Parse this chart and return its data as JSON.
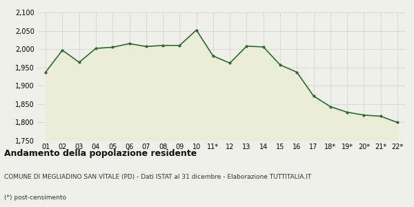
{
  "x_labels": [
    "01",
    "02",
    "03",
    "04",
    "05",
    "06",
    "07",
    "08",
    "09",
    "10",
    "11*",
    "12",
    "13",
    "14",
    "15",
    "16",
    "17",
    "18*",
    "19*",
    "20*",
    "21*",
    "22*"
  ],
  "y_values": [
    1937,
    1997,
    1964,
    2002,
    2005,
    2015,
    2007,
    2010,
    2010,
    2052,
    1981,
    1962,
    2008,
    2006,
    1957,
    1937,
    1872,
    1843,
    1828,
    1820,
    1817,
    1800
  ],
  "ylim": [
    1750,
    2100
  ],
  "yticks": [
    1750,
    1800,
    1850,
    1900,
    1950,
    2000,
    2050,
    2100
  ],
  "line_color": "#2d6a2d",
  "fill_color": "#eaedd8",
  "marker_color": "#2d6a2d",
  "background_color": "#f0f0ea",
  "grid_color": "#d0d0cc",
  "title": "Andamento della popolazione residente",
  "subtitle": "COMUNE DI MEGLIADINO SAN VITALE (PD) - Dati ISTAT al 31 dicembre - Elaborazione TUTTITALIA.IT",
  "footnote": "(*) post-censimento",
  "title_fontsize": 9,
  "subtitle_fontsize": 6.5,
  "footnote_fontsize": 6.5,
  "tick_fontsize": 7,
  "line_width": 1.2,
  "marker_size": 3.0
}
